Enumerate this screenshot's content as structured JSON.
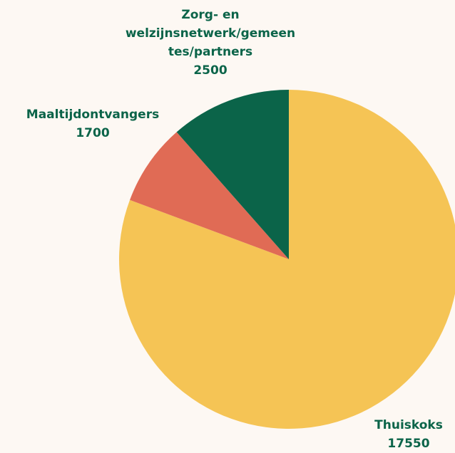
{
  "chart_data": {
    "type": "pie",
    "categories": [
      "Thuiskoks",
      "Maaltijdontvangers",
      "Zorg- en welzijnsnetwerk/gemeentes/partners"
    ],
    "values": [
      17550,
      1700,
      2500
    ],
    "colors": [
      "#f5c455",
      "#e06b55",
      "#0b6449"
    ]
  }
}
